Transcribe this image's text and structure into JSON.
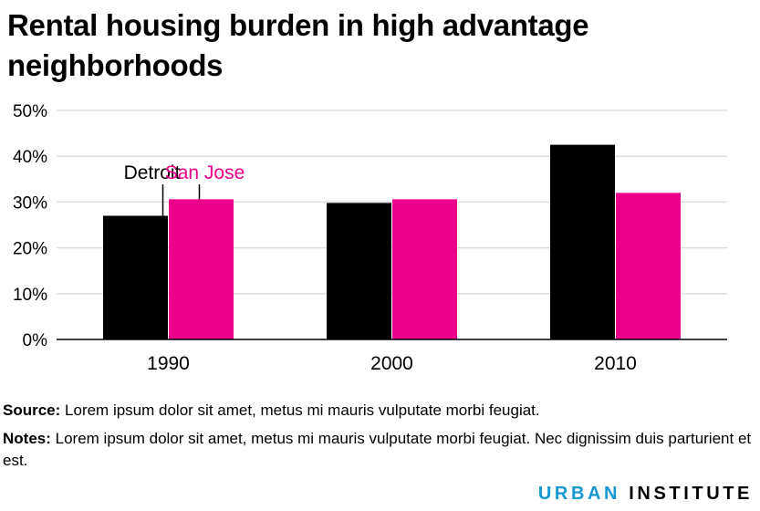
{
  "title": "Rental housing burden in high advantage neighborhoods",
  "source_label": "Source:",
  "source_text": "Lorem ipsum dolor sit amet, metus mi mauris vulputate morbi feugiat.",
  "notes_label": "Notes:",
  "notes_text": "Lorem ipsum dolor sit amet, metus mi mauris vulputate morbi feugiat. Nec dignissim duis parturient et est.",
  "logo": {
    "part1": "URBAN",
    "part2": "INSTITUTE",
    "part1_color": "#1696d2",
    "part2_color": "#000000"
  },
  "chart_data": {
    "type": "bar",
    "title": "Rental housing burden in high advantage neighborhoods",
    "categories": [
      "1990",
      "2000",
      "2010"
    ],
    "series": [
      {
        "name": "Detroit",
        "values": [
          0.27,
          0.298,
          0.425
        ],
        "color": "#000000"
      },
      {
        "name": "San Jose",
        "values": [
          0.306,
          0.306,
          0.32
        ],
        "color": "#ec008b"
      }
    ],
    "ylim": [
      0,
      0.5
    ],
    "yticks": [
      0,
      0.1,
      0.2,
      0.3,
      0.4,
      0.5
    ],
    "ytick_labels": [
      "0%",
      "10%",
      "20%",
      "30%",
      "40%",
      "50%"
    ],
    "grid": true,
    "legend": "direct labels above 1990 bars",
    "xlabel": "",
    "ylabel": ""
  }
}
